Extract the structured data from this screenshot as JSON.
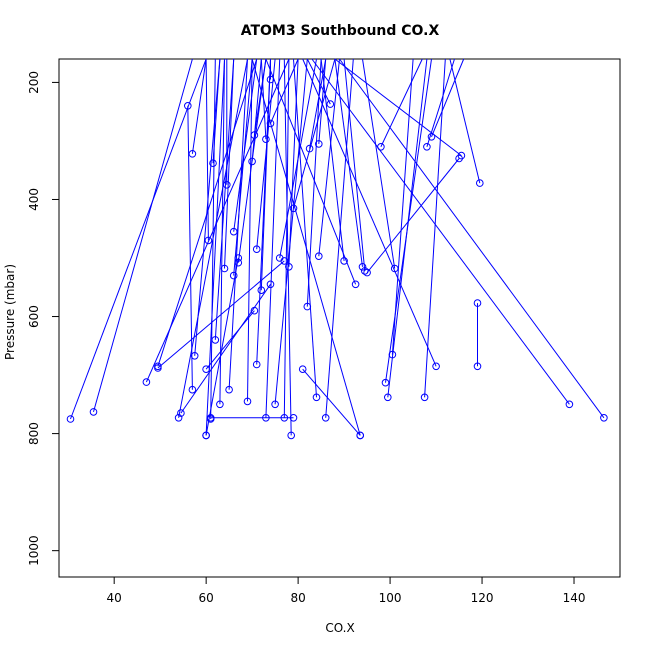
{
  "chart_data": {
    "type": "line",
    "title": "ATOM3 Southbound CO.X",
    "xlabel": "CO.X",
    "ylabel": "Pressure (mbar)",
    "xlim": [
      28,
      150
    ],
    "ylim": [
      1045,
      160
    ],
    "y_reversed": true,
    "x_ticks": [
      40,
      60,
      80,
      100,
      120,
      140
    ],
    "y_ticks": [
      200,
      400,
      600,
      800,
      1000
    ],
    "grid": false,
    "series_color": "#0000ff",
    "marker": "open-circle",
    "series": [
      {
        "x": [
          30.5,
          60
        ],
        "y": [
          775,
          155
        ]
      },
      {
        "x": [
          35.5,
          57
        ],
        "y": [
          763,
          155
        ]
      },
      {
        "x": [
          47,
          78
        ],
        "y": [
          712,
          155
        ]
      },
      {
        "x": [
          49.5,
          71
        ],
        "y": [
          685,
          155
        ]
      },
      {
        "x": [
          54,
          69
        ],
        "y": [
          773,
          155
        ]
      },
      {
        "x": [
          57,
          56
        ],
        "y": [
          725,
          240
        ]
      },
      {
        "x": [
          57.5,
          63
        ],
        "y": [
          667,
          155
        ]
      },
      {
        "x": [
          57,
          60
        ],
        "y": [
          322,
          155
        ]
      },
      {
        "x": [
          60,
          64
        ],
        "y": [
          803,
          155
        ]
      },
      {
        "x": [
          60.5,
          60
        ],
        "y": [
          470,
          155
        ]
      },
      {
        "x": [
          61,
          62
        ],
        "y": [
          775,
          155
        ]
      },
      {
        "x": [
          61.5,
          63
        ],
        "y": [
          338,
          155
        ]
      },
      {
        "x": [
          62,
          66
        ],
        "y": [
          640,
          155
        ]
      },
      {
        "x": [
          63,
          64
        ],
        "y": [
          750,
          155
        ]
      },
      {
        "x": [
          64,
          66
        ],
        "y": [
          518,
          155
        ]
      },
      {
        "x": [
          64.5,
          64.5
        ],
        "y": [
          375,
          155
        ]
      },
      {
        "x": [
          65,
          69
        ],
        "y": [
          725,
          155
        ]
      },
      {
        "x": [
          66,
          70
        ],
        "y": [
          530,
          155
        ]
      },
      {
        "x": [
          66,
          71
        ],
        "y": [
          455,
          155
        ]
      },
      {
        "x": [
          67,
          73
        ],
        "y": [
          508,
          155
        ]
      },
      {
        "x": [
          69,
          70
        ],
        "y": [
          745,
          155
        ]
      },
      {
        "x": [
          70,
          72
        ],
        "y": [
          335,
          155
        ]
      },
      {
        "x": [
          70.5,
          73
        ],
        "y": [
          290,
          155
        ]
      },
      {
        "x": [
          71,
          74
        ],
        "y": [
          682,
          155
        ]
      },
      {
        "x": [
          71,
          75
        ],
        "y": [
          485,
          155
        ]
      },
      {
        "x": [
          72,
          74
        ],
        "y": [
          555,
          155
        ]
      },
      {
        "x": [
          73,
          76
        ],
        "y": [
          773,
          155
        ]
      },
      {
        "x": [
          73,
          72
        ],
        "y": [
          297,
          155
        ]
      },
      {
        "x": [
          74,
          74
        ],
        "y": [
          195,
          155
        ]
      },
      {
        "x": [
          74,
          80
        ],
        "y": [
          270,
          155
        ]
      },
      {
        "x": [
          75,
          82
        ],
        "y": [
          750,
          155
        ]
      },
      {
        "x": [
          76,
          84
        ],
        "y": [
          500,
          155
        ]
      },
      {
        "x": [
          77,
          78
        ],
        "y": [
          773,
          155
        ]
      },
      {
        "x": [
          78,
          80
        ],
        "y": [
          515,
          155
        ]
      },
      {
        "x": [
          78.5,
          77
        ],
        "y": [
          803,
          155
        ]
      },
      {
        "x": [
          79,
          88
        ],
        "y": [
          415,
          155
        ]
      },
      {
        "x": [
          82,
          85
        ],
        "y": [
          583,
          155
        ]
      },
      {
        "x": [
          82.5,
          86
        ],
        "y": [
          313,
          155
        ]
      },
      {
        "x": [
          84,
          79
        ],
        "y": [
          738,
          155
        ]
      },
      {
        "x": [
          84.5,
          89
        ],
        "y": [
          497,
          155
        ]
      },
      {
        "x": [
          84.5,
          86
        ],
        "y": [
          305,
          155
        ]
      },
      {
        "x": [
          86,
          92
        ],
        "y": [
          773,
          155
        ]
      },
      {
        "x": [
          87,
          82
        ],
        "y": [
          237,
          155
        ]
      },
      {
        "x": [
          90,
          85
        ],
        "y": [
          505,
          155
        ]
      },
      {
        "x": [
          92.5,
          73
        ],
        "y": [
          545,
          155
        ]
      },
      {
        "x": [
          93.5,
          70
        ],
        "y": [
          803,
          155
        ]
      },
      {
        "x": [
          94,
          88
        ],
        "y": [
          515,
          155
        ]
      },
      {
        "x": [
          94.5,
          90
        ],
        "y": [
          522,
          155
        ]
      },
      {
        "x": [
          98,
          107
        ],
        "y": [
          310,
          155
        ]
      },
      {
        "x": [
          99,
          109
        ],
        "y": [
          713,
          155
        ]
      },
      {
        "x": [
          99.5,
          108
        ],
        "y": [
          738,
          155
        ]
      },
      {
        "x": [
          100.5,
          105
        ],
        "y": [
          665,
          155
        ]
      },
      {
        "x": [
          101,
          94
        ],
        "y": [
          518,
          155
        ]
      },
      {
        "x": [
          107.5,
          112
        ],
        "y": [
          738,
          155
        ]
      },
      {
        "x": [
          108,
          114
        ],
        "y": [
          310,
          155
        ]
      },
      {
        "x": [
          109,
          116
        ],
        "y": [
          293,
          155
        ]
      },
      {
        "x": [
          110,
          81
        ],
        "y": [
          685,
          155
        ]
      },
      {
        "x": [
          115.5,
          88
        ],
        "y": [
          325,
          155
        ]
      },
      {
        "x": [
          119,
          119
        ],
        "y": [
          685,
          577
        ]
      },
      {
        "x": [
          119.5,
          113
        ],
        "y": [
          372,
          155
        ]
      },
      {
        "x": [
          139,
          83
        ],
        "y": [
          750,
          155
        ]
      },
      {
        "x": [
          146.5,
          89
        ],
        "y": [
          773,
          155
        ]
      },
      {
        "x": [
          74,
          54.5
        ],
        "y": [
          545,
          765
        ]
      },
      {
        "x": [
          77,
          49.5
        ],
        "y": [
          505,
          688
        ]
      },
      {
        "x": [
          70.5,
          60
        ],
        "y": [
          590,
          690
        ]
      },
      {
        "x": [
          115,
          95
        ],
        "y": [
          330,
          525
        ]
      },
      {
        "x": [
          81,
          93.5
        ],
        "y": [
          690,
          803
        ]
      },
      {
        "x": [
          67,
          60
        ],
        "y": [
          500,
          803
        ]
      },
      {
        "x": [
          61,
          79
        ],
        "y": [
          773,
          773
        ]
      }
    ]
  }
}
